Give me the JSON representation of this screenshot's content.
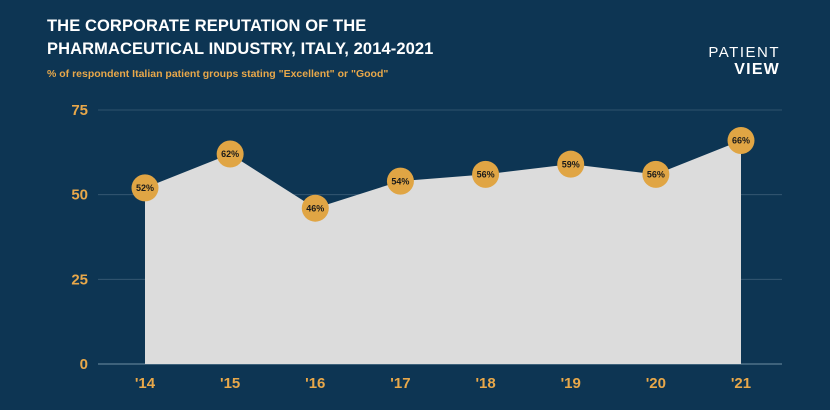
{
  "header": {
    "title_line1": "THE CORPORATE REPUTATION OF THE",
    "title_line2": "PHARMACEUTICAL INDUSTRY, ITALY, 2014-2021",
    "subtitle": "% of respondent Italian patient groups stating \"Excellent\" or \"Good\""
  },
  "logo": {
    "line1": "PATIENT",
    "line2": "VIEW"
  },
  "colors": {
    "background": "#0d3553",
    "area_fill": "#dcdcdc",
    "marker": "#e0a544",
    "axis_text": "#e8a84a",
    "title": "#ffffff"
  },
  "chart_data": {
    "type": "area",
    "categories": [
      "'14",
      "'15",
      "'16",
      "'17",
      "'18",
      "'19",
      "'20",
      "'21"
    ],
    "values": [
      52,
      62,
      46,
      54,
      56,
      59,
      56,
      66
    ],
    "data_labels": [
      "52%",
      "62%",
      "46%",
      "54%",
      "56%",
      "59%",
      "56%",
      "66%"
    ],
    "yticks": [
      0,
      25,
      50,
      75
    ],
    "ylim": [
      0,
      75
    ],
    "grid": true,
    "legend": "none"
  }
}
